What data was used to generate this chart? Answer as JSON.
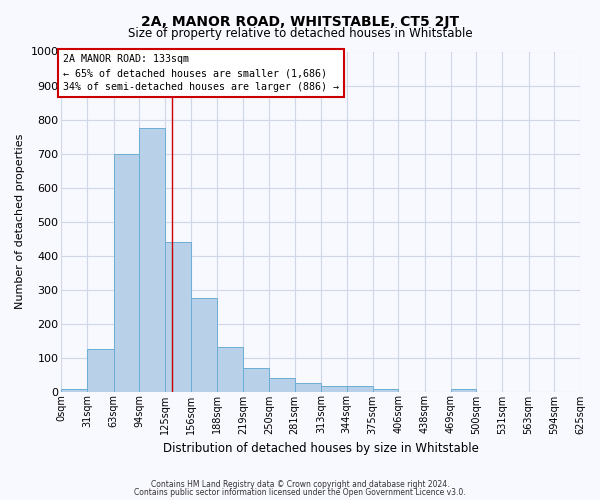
{
  "title": "2A, MANOR ROAD, WHITSTABLE, CT5 2JT",
  "subtitle": "Size of property relative to detached houses in Whitstable",
  "xlabel": "Distribution of detached houses by size in Whitstable",
  "ylabel": "Number of detached properties",
  "footnote1": "Contains HM Land Registry data © Crown copyright and database right 2024.",
  "footnote2": "Contains public sector information licensed under the Open Government Licence v3.0.",
  "bin_edges": [
    0,
    31,
    63,
    94,
    125,
    156,
    188,
    219,
    250,
    281,
    313,
    344,
    375,
    406,
    438,
    469,
    500,
    531,
    563,
    594,
    625
  ],
  "bin_labels": [
    "0sqm",
    "31sqm",
    "63sqm",
    "94sqm",
    "125sqm",
    "156sqm",
    "188sqm",
    "219sqm",
    "250sqm",
    "281sqm",
    "313sqm",
    "344sqm",
    "375sqm",
    "406sqm",
    "438sqm",
    "469sqm",
    "500sqm",
    "531sqm",
    "563sqm",
    "594sqm",
    "625sqm"
  ],
  "bar_heights": [
    8,
    125,
    700,
    775,
    440,
    275,
    130,
    70,
    40,
    25,
    15,
    15,
    8,
    0,
    0,
    8,
    0,
    0,
    0,
    0
  ],
  "bar_color": "#b8d0e8",
  "bar_edge_color": "#6baed6",
  "vline_x": 133,
  "vline_color": "#cc0000",
  "ylim": [
    0,
    1000
  ],
  "yticks": [
    0,
    100,
    200,
    300,
    400,
    500,
    600,
    700,
    800,
    900,
    1000
  ],
  "annotation_title": "2A MANOR ROAD: 133sqm",
  "annotation_line1": "← 65% of detached houses are smaller (1,686)",
  "annotation_line2": "34% of semi-detached houses are larger (886) →",
  "annotation_box_color": "#ffffff",
  "annotation_box_edge": "#cc0000",
  "grid_color": "#d0d8e8",
  "background_color": "#f8f8ff"
}
